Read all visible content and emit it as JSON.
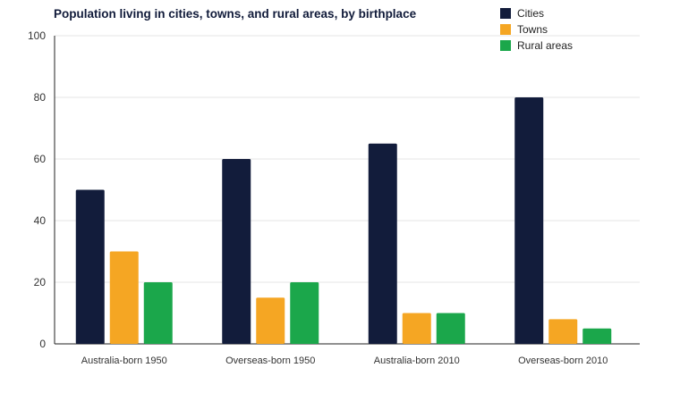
{
  "chart_data": {
    "type": "bar",
    "title": "Population living in cities, towns, and rural areas, by birthplace",
    "categories": [
      "Australia-born 1950",
      "Overseas-born 1950",
      "Australia-born 2010",
      "Overseas-born 2010"
    ],
    "series": [
      {
        "name": "Cities",
        "color": "#121c3b",
        "values": [
          50,
          60,
          65,
          80
        ]
      },
      {
        "name": "Towns",
        "color": "#f5a623",
        "values": [
          30,
          15,
          10,
          8
        ]
      },
      {
        "name": "Rural areas",
        "color": "#1ba74b",
        "values": [
          20,
          20,
          10,
          5
        ]
      }
    ],
    "ylim": [
      0,
      100
    ],
    "yticks": [
      "0",
      "20",
      "40",
      "60",
      "80",
      "100"
    ],
    "xlabel": "",
    "ylabel": "",
    "grid": true,
    "legend_position": "top-right"
  }
}
